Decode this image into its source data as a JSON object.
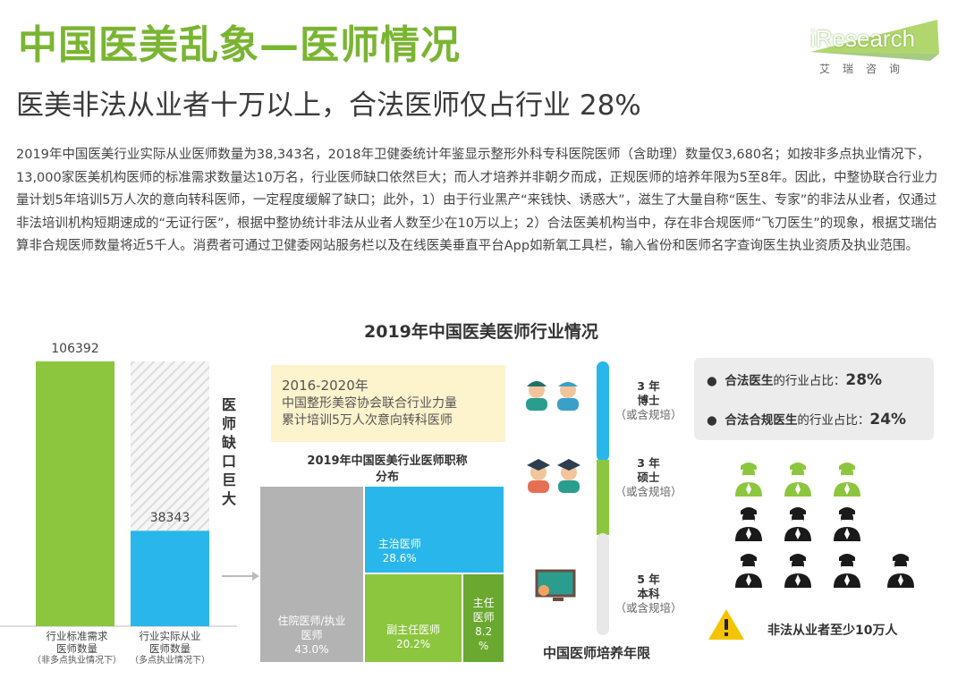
{
  "title": "中国医美乱象—医师情况",
  "subtitle": "医美非法从业者十万以上，合法医师仅占行业 28%",
  "logo": {
    "text": "iResearch",
    "cn": "艾瑞咨询"
  },
  "paragraph": "2019年中国医美行业实际从业医师数量为38,343名，2018年卫健委统计年鉴显示整形外科专科医院医师（含助理）数量仅3,680名；如按非多点执业情况下，13,000家医美机构医师的标准需求数量达10万名，行业医师缺口依然巨大；而人才培养并非朝夕而成，正规医师的培养年限为5至8年。因此，中整协联合行业力量计划5年培训5万人次的意向转科医师，一定程度缓解了缺口；此外，1）由于行业黑产“来钱快、诱惑大”，滋生了大量自称“医生、专家”的非法从业者，仅通过非法培训机构短期速成的“无证行医”，根据中整协统计非法从业者人数至少在10万以上；2）合法医美机构当中，存在非合规医师“飞刀医生”的现象，根据艾瑞估算非合规医师数量将近5千人。消费者可通过卫健委网站服务栏以及在线医美垂直平台App如新氧工具栏，输入省份和医师名字查询医生执业资质及执业范围。",
  "chart_title": "2019年中国医美医师行业情况",
  "gap_label": "医师缺口巨大",
  "callout": {
    "heading": "2016-2020年",
    "line1": "中国整形美容协会联合行业力量",
    "line2": "累计培训5万人次意向转科医师"
  },
  "colors": {
    "green": "#8cc63f",
    "blue": "#29b6ea",
    "gray": "#b3b3b3",
    "title_green": "#7ab532"
  },
  "chart_data": [
    {
      "type": "bar",
      "categories": [
        "行业标准需求医师数量",
        "行业实际从业医师数量"
      ],
      "category_notes": [
        "（非多点执业情况下）",
        "（多点执业情况下）"
      ],
      "values": [
        106392,
        38343
      ],
      "value_labels": [
        "106392",
        "38343"
      ],
      "colors": [
        "#8cc63f",
        "#29b6ea"
      ],
      "ylim": [
        0,
        106392
      ]
    },
    {
      "type": "treemap",
      "title": "2019年中国医美行业医师职称分布",
      "categories": [
        "住院医师/执业医师",
        "主治医师",
        "副主任医师",
        "主任医师"
      ],
      "values": [
        43.0,
        28.6,
        20.2,
        8.2
      ],
      "value_labels": [
        "43.0%",
        "28.6%",
        "20.2%",
        "8.2%"
      ],
      "colors": [
        "#b3b3b3",
        "#29b6ea",
        "#8cc63f",
        "#6aa82f"
      ]
    },
    {
      "type": "timeline",
      "title": "中国医师培养年限",
      "stages": [
        {
          "years": "3 年",
          "degree": "博士",
          "note": "（或含规培）",
          "color": "#29b6ea"
        },
        {
          "years": "3 年",
          "degree": "硕士",
          "note": "（或含规培）",
          "color": "#8cc63f"
        },
        {
          "years": "5 年",
          "degree": "本科",
          "note": "（或含规培）",
          "color": "#e8e8e8"
        }
      ]
    },
    {
      "type": "pictogram",
      "stats": [
        {
          "label": "合法医生",
          "suffix": "的行业占比：",
          "value": "28%"
        },
        {
          "label": "合法合规医生",
          "suffix": "的行业占比：",
          "value": "24%"
        }
      ],
      "icon_counts": {
        "green": 3,
        "black": 7
      },
      "warning": "非法从业者至少10万人"
    }
  ]
}
